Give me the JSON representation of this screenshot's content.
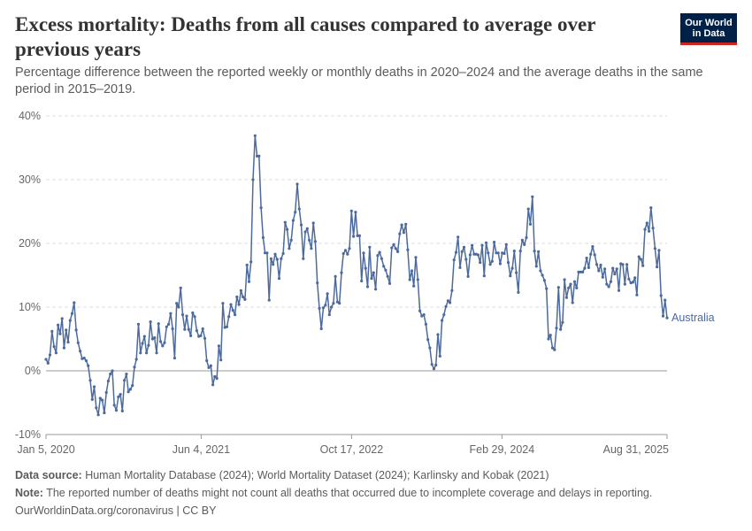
{
  "header": {
    "title": "Excess mortality: Deaths from all causes compared to average over previous years",
    "subtitle": "Percentage difference between the reported weekly or monthly deaths in 2020–2024 and the average deaths in the same period in 2015–2019.",
    "logo_line1": "Our World",
    "logo_line2": "in Data"
  },
  "footer": {
    "source_label": "Data source:",
    "source_text": " Human Mortality Database (2024); World Mortality Dataset (2024); Karlinsky and Kobak (2021)",
    "note_label": "Note:",
    "note_text": " The reported number of deaths might not count all deaths that occurred due to incomplete coverage and delays in reporting.",
    "credit": "OurWorldinData.org/coronavirus | CC BY"
  },
  "colors": {
    "line": "#4c6a9c",
    "grid": "#dddddd",
    "axis": "#999999",
    "text": "#666666",
    "brand": "#002147",
    "brand_accent": "#ce261e"
  },
  "chart_data": {
    "type": "line",
    "title": "",
    "xlabel": "",
    "ylabel": "",
    "ylim": [
      -10,
      40
    ],
    "yticks": [
      -10,
      0,
      10,
      20,
      30,
      40
    ],
    "ytick_labels": [
      "-10%",
      "0%",
      "10%",
      "20%",
      "30%",
      "40%"
    ],
    "xlim": [
      "2020-01-05",
      "2025-08-31"
    ],
    "xticks": [
      "2020-01-05",
      "2021-06-04",
      "2022-10-17",
      "2024-02-29",
      "2025-08-31"
    ],
    "xtick_labels": [
      "Jan 5, 2020",
      "Jun 4, 2021",
      "Oct 17, 2022",
      "Feb 29, 2024",
      "Aug 31, 2025"
    ],
    "grid": true,
    "series": [
      {
        "name": "Australia",
        "start": "2020-01-05",
        "end": "2025-08-31",
        "values": [
          1.8,
          1.2,
          2.5,
          6.2,
          3.8,
          2.8,
          7.2,
          5.8,
          8.2,
          3.6,
          6.4,
          4.5,
          7.9,
          9.0,
          10.7,
          6.4,
          4.4,
          3.1,
          1.9,
          2.0,
          1.6,
          0.8,
          -1.5,
          -4.5,
          -2.5,
          -5.8,
          -6.9,
          -4.3,
          -4.6,
          -6.6,
          -3.4,
          -1.6,
          -0.5,
          0.0,
          -5.4,
          -6.2,
          -4.1,
          -3.7,
          -6.3,
          -1.5,
          -0.5,
          -3.3,
          -2.9,
          -2.3,
          0.6,
          1.8,
          7.3,
          2.8,
          4.3,
          5.4,
          2.8,
          4.0,
          7.7,
          5.0,
          5.2,
          2.8,
          7.4,
          4.6,
          3.9,
          4.4,
          6.9,
          7.3,
          9.0,
          6.6,
          2.0,
          10.6,
          10.0,
          13.0,
          8.8,
          6.5,
          8.6,
          6.5,
          5.5,
          9.1,
          8.5,
          6.3,
          5.4,
          5.5,
          6.6,
          5.1,
          1.6,
          0.5,
          0.8,
          -2.2,
          -0.9,
          -1.2,
          3.9,
          1.7,
          10.6,
          6.8,
          6.9,
          8.5,
          10.4,
          9.5,
          8.8,
          11.6,
          10.4,
          12.6,
          11.6,
          11.2,
          16.6,
          14.0,
          17.1,
          30.0,
          36.9,
          33.7,
          33.7,
          25.6,
          20.9,
          18.5,
          18.5,
          11.1,
          17.6,
          16.7,
          18.3,
          17.5,
          14.5,
          17.6,
          18.4,
          23.3,
          22.2,
          19.2,
          20.5,
          23.6,
          24.9,
          29.3,
          25.4,
          22.9,
          17.6,
          21.8,
          22.3,
          20.5,
          19.2,
          23.2,
          20.3,
          13.8,
          9.8,
          6.6,
          9.9,
          10.3,
          12.1,
          8.8,
          10.0,
          10.6,
          14.8,
          10.8,
          10.6,
          15.4,
          18.4,
          18.9,
          18.3,
          19.2,
          25.1,
          21.1,
          24.9,
          21.2,
          21.2,
          14.1,
          18.5,
          16.1,
          13.2,
          19.4,
          14.5,
          15.4,
          12.8,
          18.1,
          18.6,
          17.6,
          16.4,
          15.8,
          14.8,
          13.7,
          19.3,
          19.8,
          19.2,
          18.7,
          21.5,
          22.9,
          21.7,
          23.0,
          19.0,
          14.3,
          15.7,
          13.3,
          17.8,
          14.3,
          9.4,
          8.6,
          8.8,
          7.3,
          4.9,
          3.6,
          1.0,
          0.3,
          0.9,
          5.7,
          2.3,
          7.9,
          8.8,
          10.1,
          11.0,
          10.7,
          12.6,
          17.4,
          18.6,
          21.0,
          16.2,
          18.7,
          19.4,
          17.5,
          14.8,
          18.2,
          19.7,
          18.3,
          18.3,
          18.2,
          17.0,
          19.7,
          14.9,
          20.1,
          18.5,
          16.7,
          17.2,
          20.2,
          18.5,
          18.5,
          16.8,
          18.5,
          18.4,
          19.8,
          17.0,
          14.9,
          16.1,
          18.8,
          15.4,
          12.3,
          18.8,
          20.5,
          19.8,
          20.9,
          25.4,
          23.0,
          27.3,
          18.8,
          16.4,
          18.7,
          15.7,
          15.0,
          14.2,
          12.9,
          5.0,
          5.6,
          3.6,
          3.3,
          6.7,
          13.1,
          6.5,
          7.6,
          14.3,
          11.5,
          13.0,
          13.6,
          10.7,
          14.0,
          13.0,
          15.5,
          15.5,
          15.5,
          16.1,
          17.7,
          16.2,
          18.3,
          19.5,
          18.2,
          16.7,
          15.7,
          16.6,
          14.7,
          16.0,
          13.6,
          13.2,
          14.0,
          16.1,
          15.2,
          16.0,
          12.6,
          16.8,
          16.7,
          13.6,
          16.7,
          14.4,
          13.8,
          13.9,
          14.6,
          11.9,
          17.9,
          17.5,
          16.5,
          22.2,
          23.2,
          21.9,
          25.6,
          22.4,
          19.2,
          16.3,
          18.9,
          11.8,
          8.6,
          11.1,
          8.3
        ]
      }
    ]
  }
}
